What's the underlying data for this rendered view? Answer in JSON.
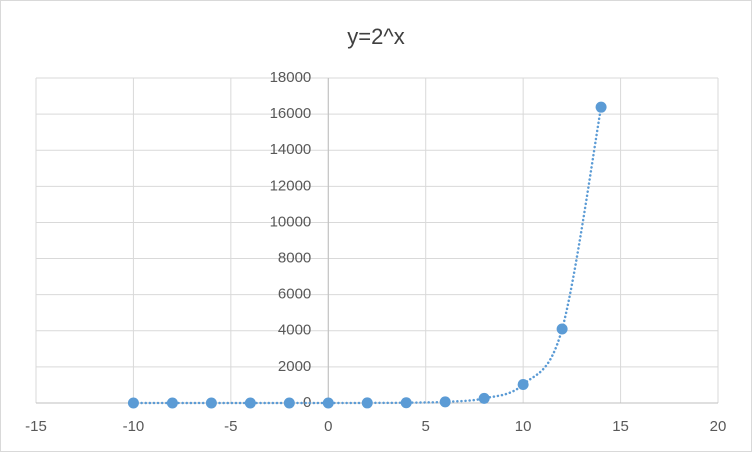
{
  "chart_data": {
    "type": "scatter",
    "title": "y=2^x",
    "series": [
      {
        "color": "#5b9bd5",
        "x": [
          -10,
          -8,
          -6,
          -4,
          -2,
          0,
          2,
          4,
          6,
          8,
          10,
          12,
          14
        ],
        "values": [
          0.001,
          0.004,
          0.016,
          0.0625,
          0.25,
          1,
          4,
          16,
          64,
          256,
          1024,
          4096,
          16384
        ]
      }
    ],
    "xlim": [
      -15,
      20
    ],
    "xticks": [
      -15,
      -10,
      -5,
      0,
      5,
      10,
      15,
      20
    ],
    "ylim": [
      0,
      18000
    ],
    "yticks": [
      0,
      2000,
      4000,
      6000,
      8000,
      10000,
      12000,
      14000,
      16000,
      18000
    ],
    "grid": true,
    "line_style": "dotted",
    "smooth": true
  }
}
